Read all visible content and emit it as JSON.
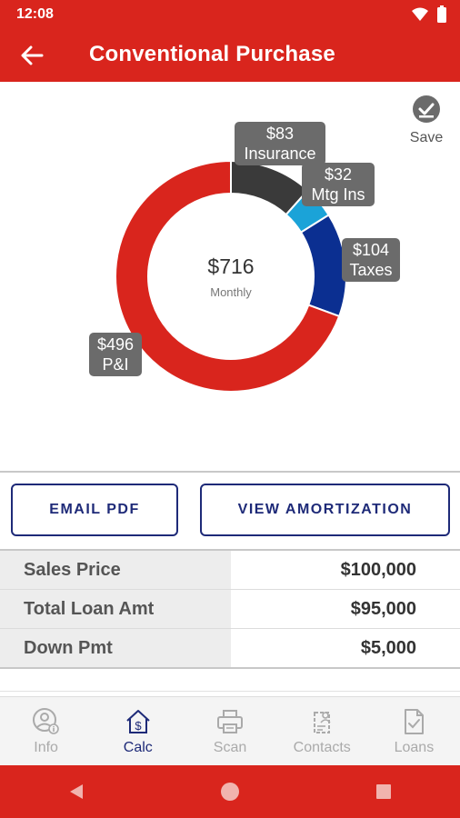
{
  "status_bar": {
    "time": "12:08"
  },
  "app_bar": {
    "title": "Conventional Purchase"
  },
  "save": {
    "label": "Save"
  },
  "chart_data": {
    "type": "pie",
    "subtype": "donut",
    "center_value": "$716",
    "center_label": "Monthly",
    "slices": [
      {
        "name": "Insurance",
        "label": "$83",
        "value": 83,
        "color": "#3a3a3a"
      },
      {
        "name": "Mtg Ins",
        "label": "$32",
        "value": 32,
        "color": "#1ba3d8"
      },
      {
        "name": "Taxes",
        "label": "$104",
        "value": 104,
        "color": "#0b2f91"
      },
      {
        "name": "P&I",
        "label": "$496",
        "value": 496,
        "color": "#d9251d"
      }
    ]
  },
  "buttons": {
    "email_pdf": "EMAIL PDF",
    "view_amortization": "VIEW AMORTIZATION"
  },
  "summary": {
    "rows": [
      {
        "label": "Sales Price",
        "value": "$100,000"
      },
      {
        "label": "Total Loan Amt",
        "value": "$95,000"
      },
      {
        "label": "Down Pmt",
        "value": "$5,000"
      }
    ]
  },
  "bottom_nav": {
    "items": [
      {
        "label": "Info",
        "icon": "info-user-icon"
      },
      {
        "label": "Calc",
        "icon": "home-dollar-icon",
        "active": true
      },
      {
        "label": "Scan",
        "icon": "printer-icon"
      },
      {
        "label": "Contacts",
        "icon": "contacts-icon"
      },
      {
        "label": "Loans",
        "icon": "document-check-icon"
      }
    ]
  },
  "colors": {
    "brand_red": "#d9251d",
    "navy": "#1e2a78",
    "tooltip_gray": "#6b6b6b"
  }
}
